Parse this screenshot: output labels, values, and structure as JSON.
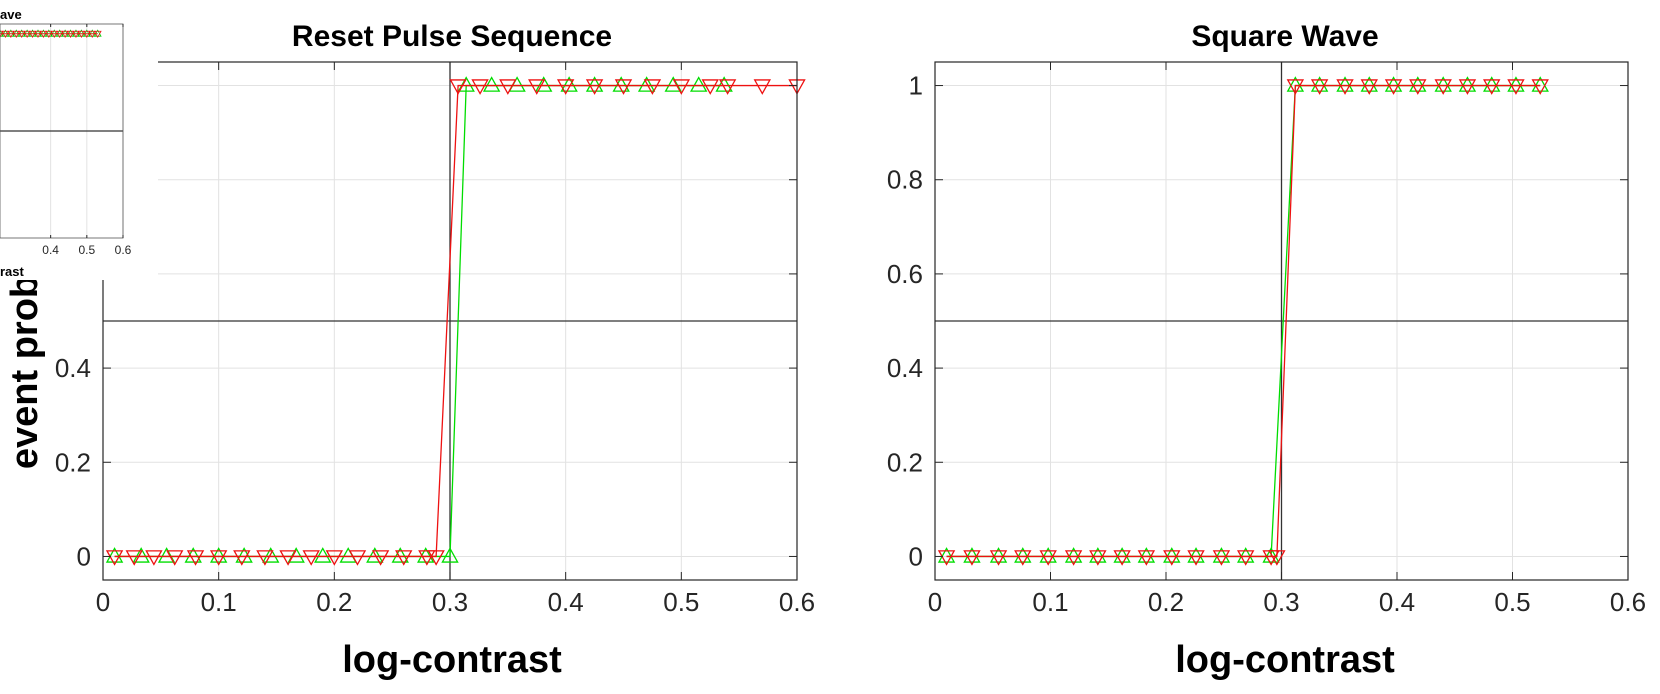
{
  "figure": {
    "ylabel": "event prob"
  },
  "chart_data": [
    {
      "type": "line",
      "title": "Reset Pulse Sequence",
      "xlabel": "log-contrast",
      "ylabel": "event prob",
      "xlim": [
        0,
        0.6
      ],
      "ylim": [
        -0.05,
        1.05
      ],
      "xticks": [
        0,
        0.1,
        0.2,
        0.3,
        0.4,
        0.5,
        0.6
      ],
      "xtick_labels": [
        "0",
        "0.1",
        "0.2",
        "0.3",
        "0.4",
        "0.5",
        "0.6"
      ],
      "yticks": [
        0,
        0.2,
        0.4,
        0.6,
        0.8,
        1
      ],
      "yticks_visible_labels": [
        "0",
        "0.2",
        "0.4"
      ],
      "grid": true,
      "reference_lines": {
        "x": 0.3,
        "y": 0.5
      },
      "series": [
        {
          "color": "#00dd00",
          "marker": "triangle-up",
          "x": [
            0.01,
            0.033,
            0.055,
            0.078,
            0.1,
            0.122,
            0.145,
            0.167,
            0.19,
            0.212,
            0.235,
            0.257,
            0.279,
            0.3,
            0.314,
            0.336,
            0.358,
            0.381,
            0.403,
            0.425,
            0.448,
            0.47,
            0.493,
            0.515,
            0.537
          ],
          "values": [
            0,
            0,
            0,
            0,
            0,
            0,
            0,
            0,
            0,
            0,
            0,
            0,
            0,
            0,
            1,
            1,
            1,
            1,
            1,
            1,
            1,
            1,
            1,
            1,
            1
          ]
        },
        {
          "color": "#ee1111",
          "marker": "triangle-down",
          "x": [
            0.01,
            0.027,
            0.044,
            0.062,
            0.08,
            0.1,
            0.12,
            0.14,
            0.16,
            0.18,
            0.2,
            0.22,
            0.24,
            0.26,
            0.28,
            0.288,
            0.307,
            0.326,
            0.35,
            0.375,
            0.4,
            0.425,
            0.45,
            0.475,
            0.5,
            0.525,
            0.54,
            0.57,
            0.6
          ],
          "values": [
            0,
            0,
            0,
            0,
            0,
            0,
            0,
            0,
            0,
            0,
            0,
            0,
            0,
            0,
            0,
            0,
            1,
            1,
            1,
            1,
            1,
            1,
            1,
            1,
            1,
            1,
            1,
            1,
            1
          ]
        }
      ]
    },
    {
      "type": "line",
      "title": "Square Wave",
      "xlabel": "log-contrast",
      "ylabel": "",
      "xlim": [
        0,
        0.6
      ],
      "ylim": [
        -0.05,
        1.05
      ],
      "xticks": [
        0,
        0.1,
        0.2,
        0.3,
        0.4,
        0.5,
        0.6
      ],
      "xtick_labels": [
        "0",
        "0.1",
        "0.2",
        "0.3",
        "0.4",
        "0.5",
        "0.6"
      ],
      "yticks": [
        0,
        0.2,
        0.4,
        0.6,
        0.8,
        1
      ],
      "ytick_labels": [
        "0",
        "0.2",
        "0.4",
        "0.6",
        "0.8",
        "1"
      ],
      "grid": true,
      "reference_lines": {
        "x": 0.3,
        "y": 0.5
      },
      "series": [
        {
          "color": "#00dd00",
          "marker": "triangle-up",
          "x": [
            0.01,
            0.032,
            0.055,
            0.076,
            0.098,
            0.12,
            0.141,
            0.162,
            0.183,
            0.205,
            0.226,
            0.248,
            0.269,
            0.291,
            0.312,
            0.333,
            0.355,
            0.376,
            0.397,
            0.418,
            0.44,
            0.461,
            0.482,
            0.503,
            0.524
          ],
          "values": [
            0,
            0,
            0,
            0,
            0,
            0,
            0,
            0,
            0,
            0,
            0,
            0,
            0,
            0,
            1,
            1,
            1,
            1,
            1,
            1,
            1,
            1,
            1,
            1,
            1
          ]
        },
        {
          "color": "#ee1111",
          "marker": "triangle-down",
          "x": [
            0.01,
            0.032,
            0.055,
            0.076,
            0.098,
            0.12,
            0.141,
            0.162,
            0.183,
            0.205,
            0.226,
            0.248,
            0.269,
            0.291,
            0.296,
            0.312,
            0.333,
            0.355,
            0.376,
            0.397,
            0.418,
            0.44,
            0.461,
            0.482,
            0.503,
            0.524
          ],
          "values": [
            0,
            0,
            0,
            0,
            0,
            0,
            0,
            0,
            0,
            0,
            0,
            0,
            0,
            0,
            0,
            1,
            1,
            1,
            1,
            1,
            1,
            1,
            1,
            1,
            1,
            1
          ]
        }
      ]
    },
    {
      "type": "line",
      "title": "ave",
      "xlabel": "rast",
      "ylabel": "",
      "xlim": [
        0.26,
        0.6
      ],
      "ylim": [
        -0.05,
        1.05
      ],
      "xticks": [
        0.4,
        0.5,
        0.6
      ],
      "xtick_labels": [
        "0.4",
        "0.5",
        "0.6"
      ],
      "grid": true,
      "reference_lines": {
        "y": 0.5
      },
      "series": [
        {
          "color": "#00cc00",
          "marker": "triangle-up",
          "x": [
            0.26,
            0.275,
            0.29,
            0.305,
            0.32,
            0.335,
            0.35,
            0.365,
            0.38,
            0.395,
            0.41,
            0.425,
            0.44,
            0.455,
            0.47,
            0.485,
            0.5,
            0.515,
            0.53
          ],
          "values": [
            1,
            1,
            1,
            1,
            1,
            1,
            1,
            1,
            1,
            1,
            1,
            1,
            1,
            1,
            1,
            1,
            1,
            1,
            1
          ]
        },
        {
          "color": "#ee1111",
          "marker": "triangle-down",
          "x": [
            0.26,
            0.275,
            0.29,
            0.305,
            0.32,
            0.335,
            0.35,
            0.365,
            0.38,
            0.395,
            0.41,
            0.425,
            0.44,
            0.455,
            0.47,
            0.485,
            0.5,
            0.515,
            0.53
          ],
          "values": [
            1,
            1,
            1,
            1,
            1,
            1,
            1,
            1,
            1,
            1,
            1,
            1,
            1,
            1,
            1,
            1,
            1,
            1,
            1
          ]
        }
      ]
    }
  ]
}
